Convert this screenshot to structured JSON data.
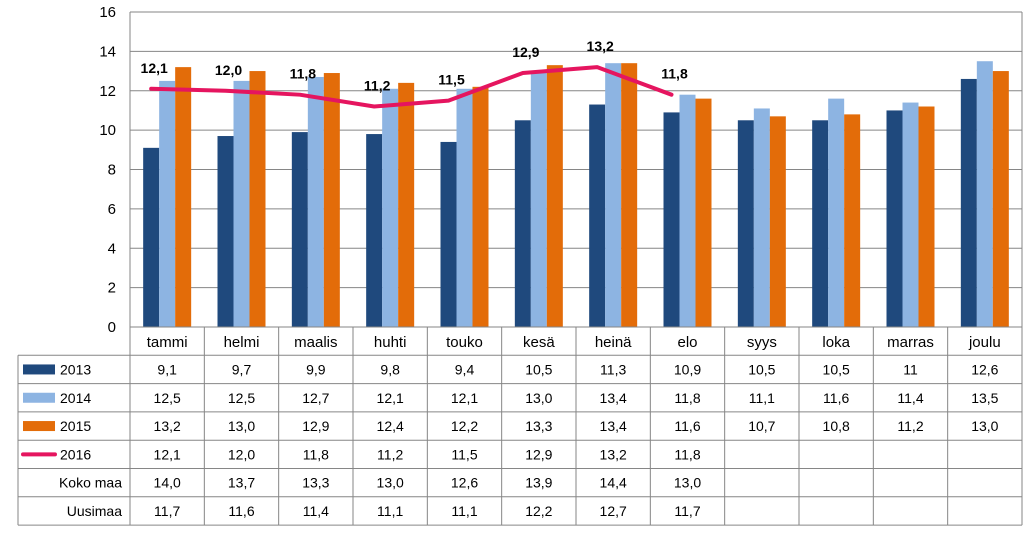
{
  "chart_data": {
    "type": "bar",
    "categories": [
      "tammi",
      "helmi",
      "maalis",
      "huhti",
      "touko",
      "kesä",
      "heinä",
      "elo",
      "syys",
      "loka",
      "marras",
      "joulu"
    ],
    "ylim": [
      0,
      16
    ],
    "yticks": [
      0,
      2,
      4,
      6,
      8,
      10,
      12,
      14,
      16
    ],
    "grid": true,
    "series": [
      {
        "name": "2013",
        "kind": "bar",
        "color": "#1F497D",
        "values": [
          9.1,
          9.7,
          9.9,
          9.8,
          9.4,
          10.5,
          11.3,
          10.9,
          10.5,
          10.5,
          11,
          12.6
        ],
        "labels": [
          "9,1",
          "9,7",
          "9,9",
          "9,8",
          "9,4",
          "10,5",
          "11,3",
          "10,9",
          "10,5",
          "10,5",
          "11",
          "12,6"
        ]
      },
      {
        "name": "2014",
        "kind": "bar",
        "color": "#8DB4E2",
        "values": [
          12.5,
          12.5,
          12.7,
          12.1,
          12.1,
          13.0,
          13.4,
          11.8,
          11.1,
          11.6,
          11.4,
          13.5
        ],
        "labels": [
          "12,5",
          "12,5",
          "12,7",
          "12,1",
          "12,1",
          "13,0",
          "13,4",
          "11,8",
          "11,1",
          "11,6",
          "11,4",
          "13,5"
        ]
      },
      {
        "name": "2015",
        "kind": "bar",
        "color": "#E36C09",
        "values": [
          13.2,
          13.0,
          12.9,
          12.4,
          12.2,
          13.3,
          13.4,
          11.6,
          10.7,
          10.8,
          11.2,
          13.0
        ],
        "labels": [
          "13,2",
          "13,0",
          "12,9",
          "12,4",
          "12,2",
          "13,3",
          "13,4",
          "11,6",
          "10,7",
          "10,8",
          "11,2",
          "13,0"
        ]
      },
      {
        "name": "2016",
        "kind": "line",
        "color": "#E5155F",
        "values": [
          12.1,
          12.0,
          11.8,
          11.2,
          11.5,
          12.9,
          13.2,
          11.8,
          null,
          null,
          null,
          null
        ],
        "labels": [
          "12,1",
          "12,0",
          "11,8",
          "11,2",
          "11,5",
          "12,9",
          "13,2",
          "11,8",
          "",
          "",
          "",
          ""
        ]
      },
      {
        "name": "Koko maa",
        "kind": "table-only",
        "values": [
          14.0,
          13.7,
          13.3,
          13.0,
          12.6,
          13.9,
          14.4,
          13.0,
          null,
          null,
          null,
          null
        ],
        "labels": [
          "14,0",
          "13,7",
          "13,3",
          "13,0",
          "12,6",
          "13,9",
          "14,4",
          "13,0",
          "",
          "",
          "",
          ""
        ]
      },
      {
        "name": "Uusimaa",
        "kind": "table-only",
        "values": [
          11.7,
          11.6,
          11.4,
          11.1,
          11.1,
          12.2,
          12.7,
          11.7,
          null,
          null,
          null,
          null
        ],
        "labels": [
          "11,7",
          "11,6",
          "11,4",
          "11,1",
          "11,1",
          "12,2",
          "12,7",
          "11,7",
          "",
          "",
          "",
          ""
        ]
      }
    ]
  }
}
